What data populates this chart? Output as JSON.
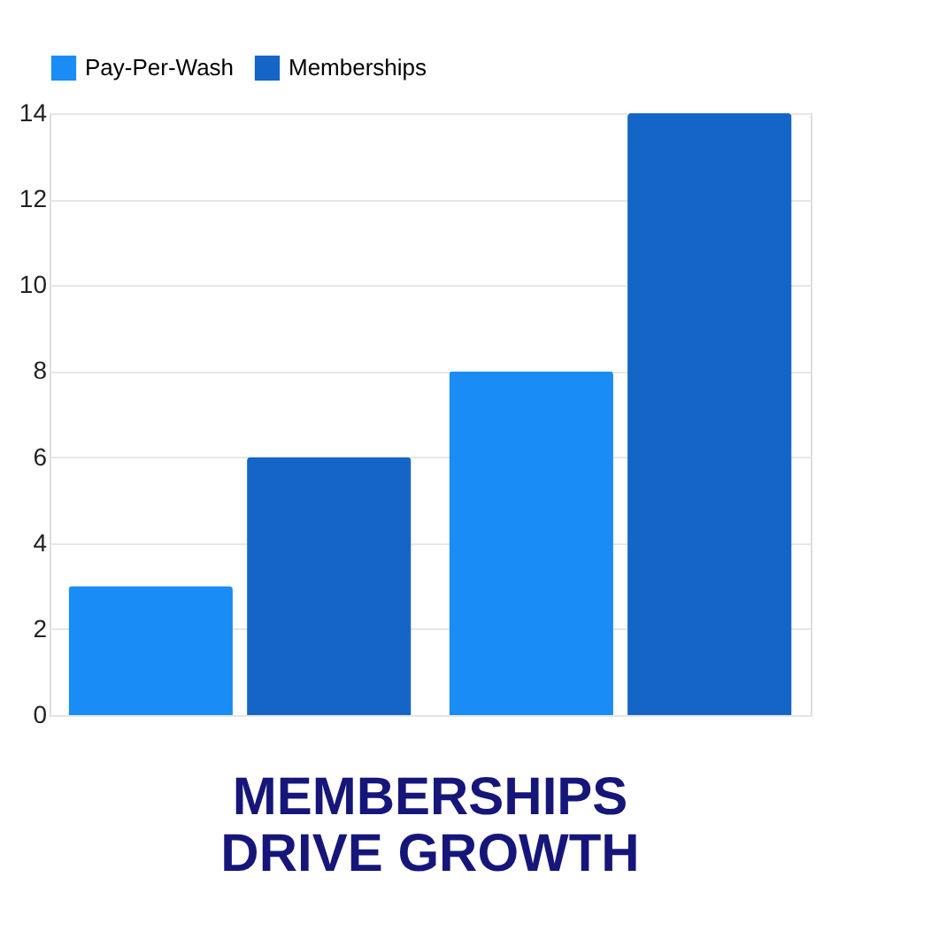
{
  "chart_data": {
    "type": "bar",
    "title": "MEMBERSHIPS\nDRIVE GROWTH",
    "categories": [
      null,
      null
    ],
    "series": [
      {
        "name": "Pay-Per-Wash",
        "color": "#1a8cf5",
        "values": [
          3,
          8
        ]
      },
      {
        "name": "Memberships",
        "color": "#1565c8",
        "values": [
          6,
          14
        ]
      }
    ],
    "ylim": [
      0,
      14
    ],
    "yticks": [
      0,
      2,
      4,
      6,
      8,
      10,
      12,
      14
    ],
    "grid": "y",
    "legend": "top",
    "tick_labels": "y"
  }
}
